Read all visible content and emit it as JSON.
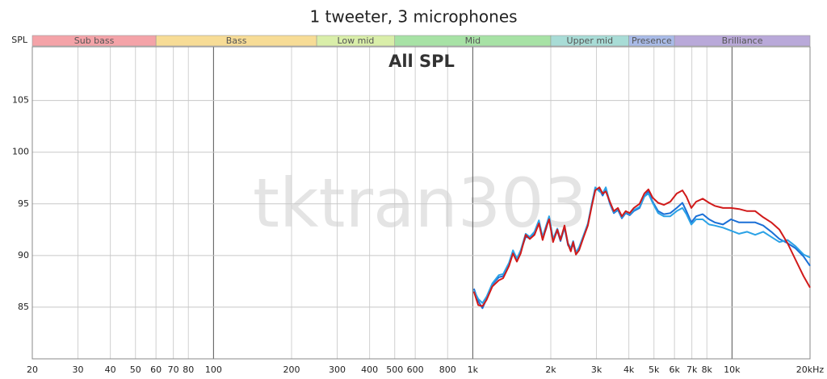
{
  "chart_data": {
    "type": "line",
    "title": "1 tweeter, 3 microphones",
    "subtitle": "All SPL",
    "ylabel": "SPL",
    "watermark": "tktran303",
    "xscale": "log",
    "grid": true,
    "xlim": [
      20,
      20000
    ],
    "ylim": [
      80,
      110.2
    ],
    "xticks": [
      20,
      30,
      40,
      50,
      60,
      70,
      80,
      100,
      200,
      300,
      400,
      500,
      600,
      800,
      {
        "value": 1000,
        "label": "1k"
      },
      {
        "value": 2000,
        "label": "2k"
      },
      {
        "value": 3000,
        "label": "3k"
      },
      {
        "value": 4000,
        "label": "4k"
      },
      {
        "value": 5000,
        "label": "5k"
      },
      {
        "value": 6000,
        "label": "6k"
      },
      {
        "value": 7000,
        "label": "7k"
      },
      {
        "value": 8000,
        "label": "8k"
      },
      {
        "value": 10000,
        "label": "10k"
      },
      {
        "value": 20000,
        "label": "20kHz"
      }
    ],
    "yticks": [
      85,
      90,
      95,
      100,
      105
    ],
    "bands": [
      {
        "label": "Sub bass",
        "from": 20,
        "to": 60,
        "color": "#f4a3a8"
      },
      {
        "label": "Bass",
        "from": 60,
        "to": 250,
        "color": "#f7dc96"
      },
      {
        "label": "Low mid",
        "from": 250,
        "to": 500,
        "color": "#d9eea9"
      },
      {
        "label": "Mid",
        "from": 500,
        "to": 2000,
        "color": "#a7e2a5"
      },
      {
        "label": "Upper mid",
        "from": 2000,
        "to": 4000,
        "color": "#a8dcd6"
      },
      {
        "label": "Presence",
        "from": 4000,
        "to": 6000,
        "color": "#a9bbe8"
      },
      {
        "label": "Brilliance",
        "from": 6000,
        "to": 20000,
        "color": "#b9a9d9"
      }
    ],
    "x": [
      1010,
      1050,
      1090,
      1130,
      1190,
      1260,
      1310,
      1380,
      1430,
      1480,
      1530,
      1600,
      1660,
      1730,
      1800,
      1860,
      1920,
      1970,
      2040,
      2120,
      2180,
      2260,
      2330,
      2390,
      2440,
      2500,
      2570,
      2670,
      2780,
      2880,
      2970,
      3080,
      3170,
      3260,
      3380,
      3500,
      3630,
      3760,
      3890,
      4030,
      4180,
      4400,
      4590,
      4760,
      4940,
      5190,
      5460,
      5780,
      6120,
      6440,
      6670,
      6970,
      7270,
      7710,
      8160,
      8580,
      9230,
      9910,
      10650,
      11440,
      12290,
      13190,
      14170,
      15240,
      16370,
      17580,
      18880,
      20000
    ],
    "series": [
      {
        "color": "#1a6fd6",
        "values": [
          86.8,
          85.6,
          84.9,
          85.8,
          87.2,
          87.9,
          88.0,
          89.2,
          90.4,
          89.6,
          90.4,
          91.8,
          91.7,
          92.2,
          93.3,
          91.7,
          92.6,
          93.7,
          91.5,
          92.4,
          91.4,
          92.7,
          91.0,
          90.6,
          91.1,
          90.2,
          90.7,
          91.8,
          93.0,
          95.0,
          96.5,
          96.4,
          95.8,
          96.4,
          95.0,
          94.1,
          94.4,
          93.6,
          94.1,
          93.9,
          94.3,
          94.6,
          95.7,
          96.2,
          95.2,
          94.3,
          94.0,
          94.1,
          94.6,
          95.1,
          94.3,
          93.2,
          93.8,
          94.0,
          93.5,
          93.2,
          93.0,
          93.5,
          93.2,
          93.2,
          93.2,
          92.9,
          92.3,
          91.6,
          91.2,
          90.7,
          89.9,
          89.0
        ]
      },
      {
        "color": "#2ba2e6",
        "values": [
          86.6,
          85.8,
          85.4,
          86.0,
          87.3,
          88.1,
          88.2,
          89.3,
          90.5,
          89.7,
          90.5,
          92.1,
          91.8,
          92.3,
          93.4,
          91.8,
          92.9,
          93.8,
          91.6,
          92.6,
          91.6,
          92.8,
          91.2,
          90.7,
          91.4,
          90.3,
          90.8,
          91.9,
          93.1,
          95.0,
          96.6,
          96.2,
          96.0,
          96.6,
          95.1,
          94.2,
          94.5,
          93.7,
          94.2,
          94.0,
          94.4,
          94.7,
          95.7,
          96.0,
          95.1,
          94.1,
          93.8,
          93.8,
          94.3,
          94.6,
          94.0,
          93.0,
          93.5,
          93.5,
          93.0,
          92.9,
          92.7,
          92.4,
          92.1,
          92.3,
          92.0,
          92.3,
          91.8,
          91.3,
          91.5,
          90.9,
          90.1,
          89.8
        ]
      },
      {
        "color": "#d11a1a",
        "values": [
          86.5,
          85.2,
          85.1,
          85.7,
          87.0,
          87.6,
          87.8,
          89.0,
          90.2,
          89.4,
          90.2,
          92.0,
          91.6,
          92.0,
          93.1,
          91.5,
          92.7,
          93.5,
          91.3,
          92.5,
          91.5,
          92.9,
          91.1,
          90.4,
          91.3,
          90.1,
          90.5,
          91.7,
          92.9,
          94.8,
          96.3,
          96.6,
          96.0,
          96.2,
          95.2,
          94.3,
          94.6,
          93.8,
          94.3,
          94.1,
          94.6,
          95.0,
          96.0,
          96.4,
          95.6,
          95.1,
          94.9,
          95.2,
          96.0,
          96.3,
          95.7,
          94.6,
          95.2,
          95.5,
          95.1,
          94.8,
          94.6,
          94.6,
          94.5,
          94.3,
          94.3,
          93.7,
          93.2,
          92.5,
          91.2,
          89.6,
          88.0,
          86.9
        ]
      }
    ]
  }
}
